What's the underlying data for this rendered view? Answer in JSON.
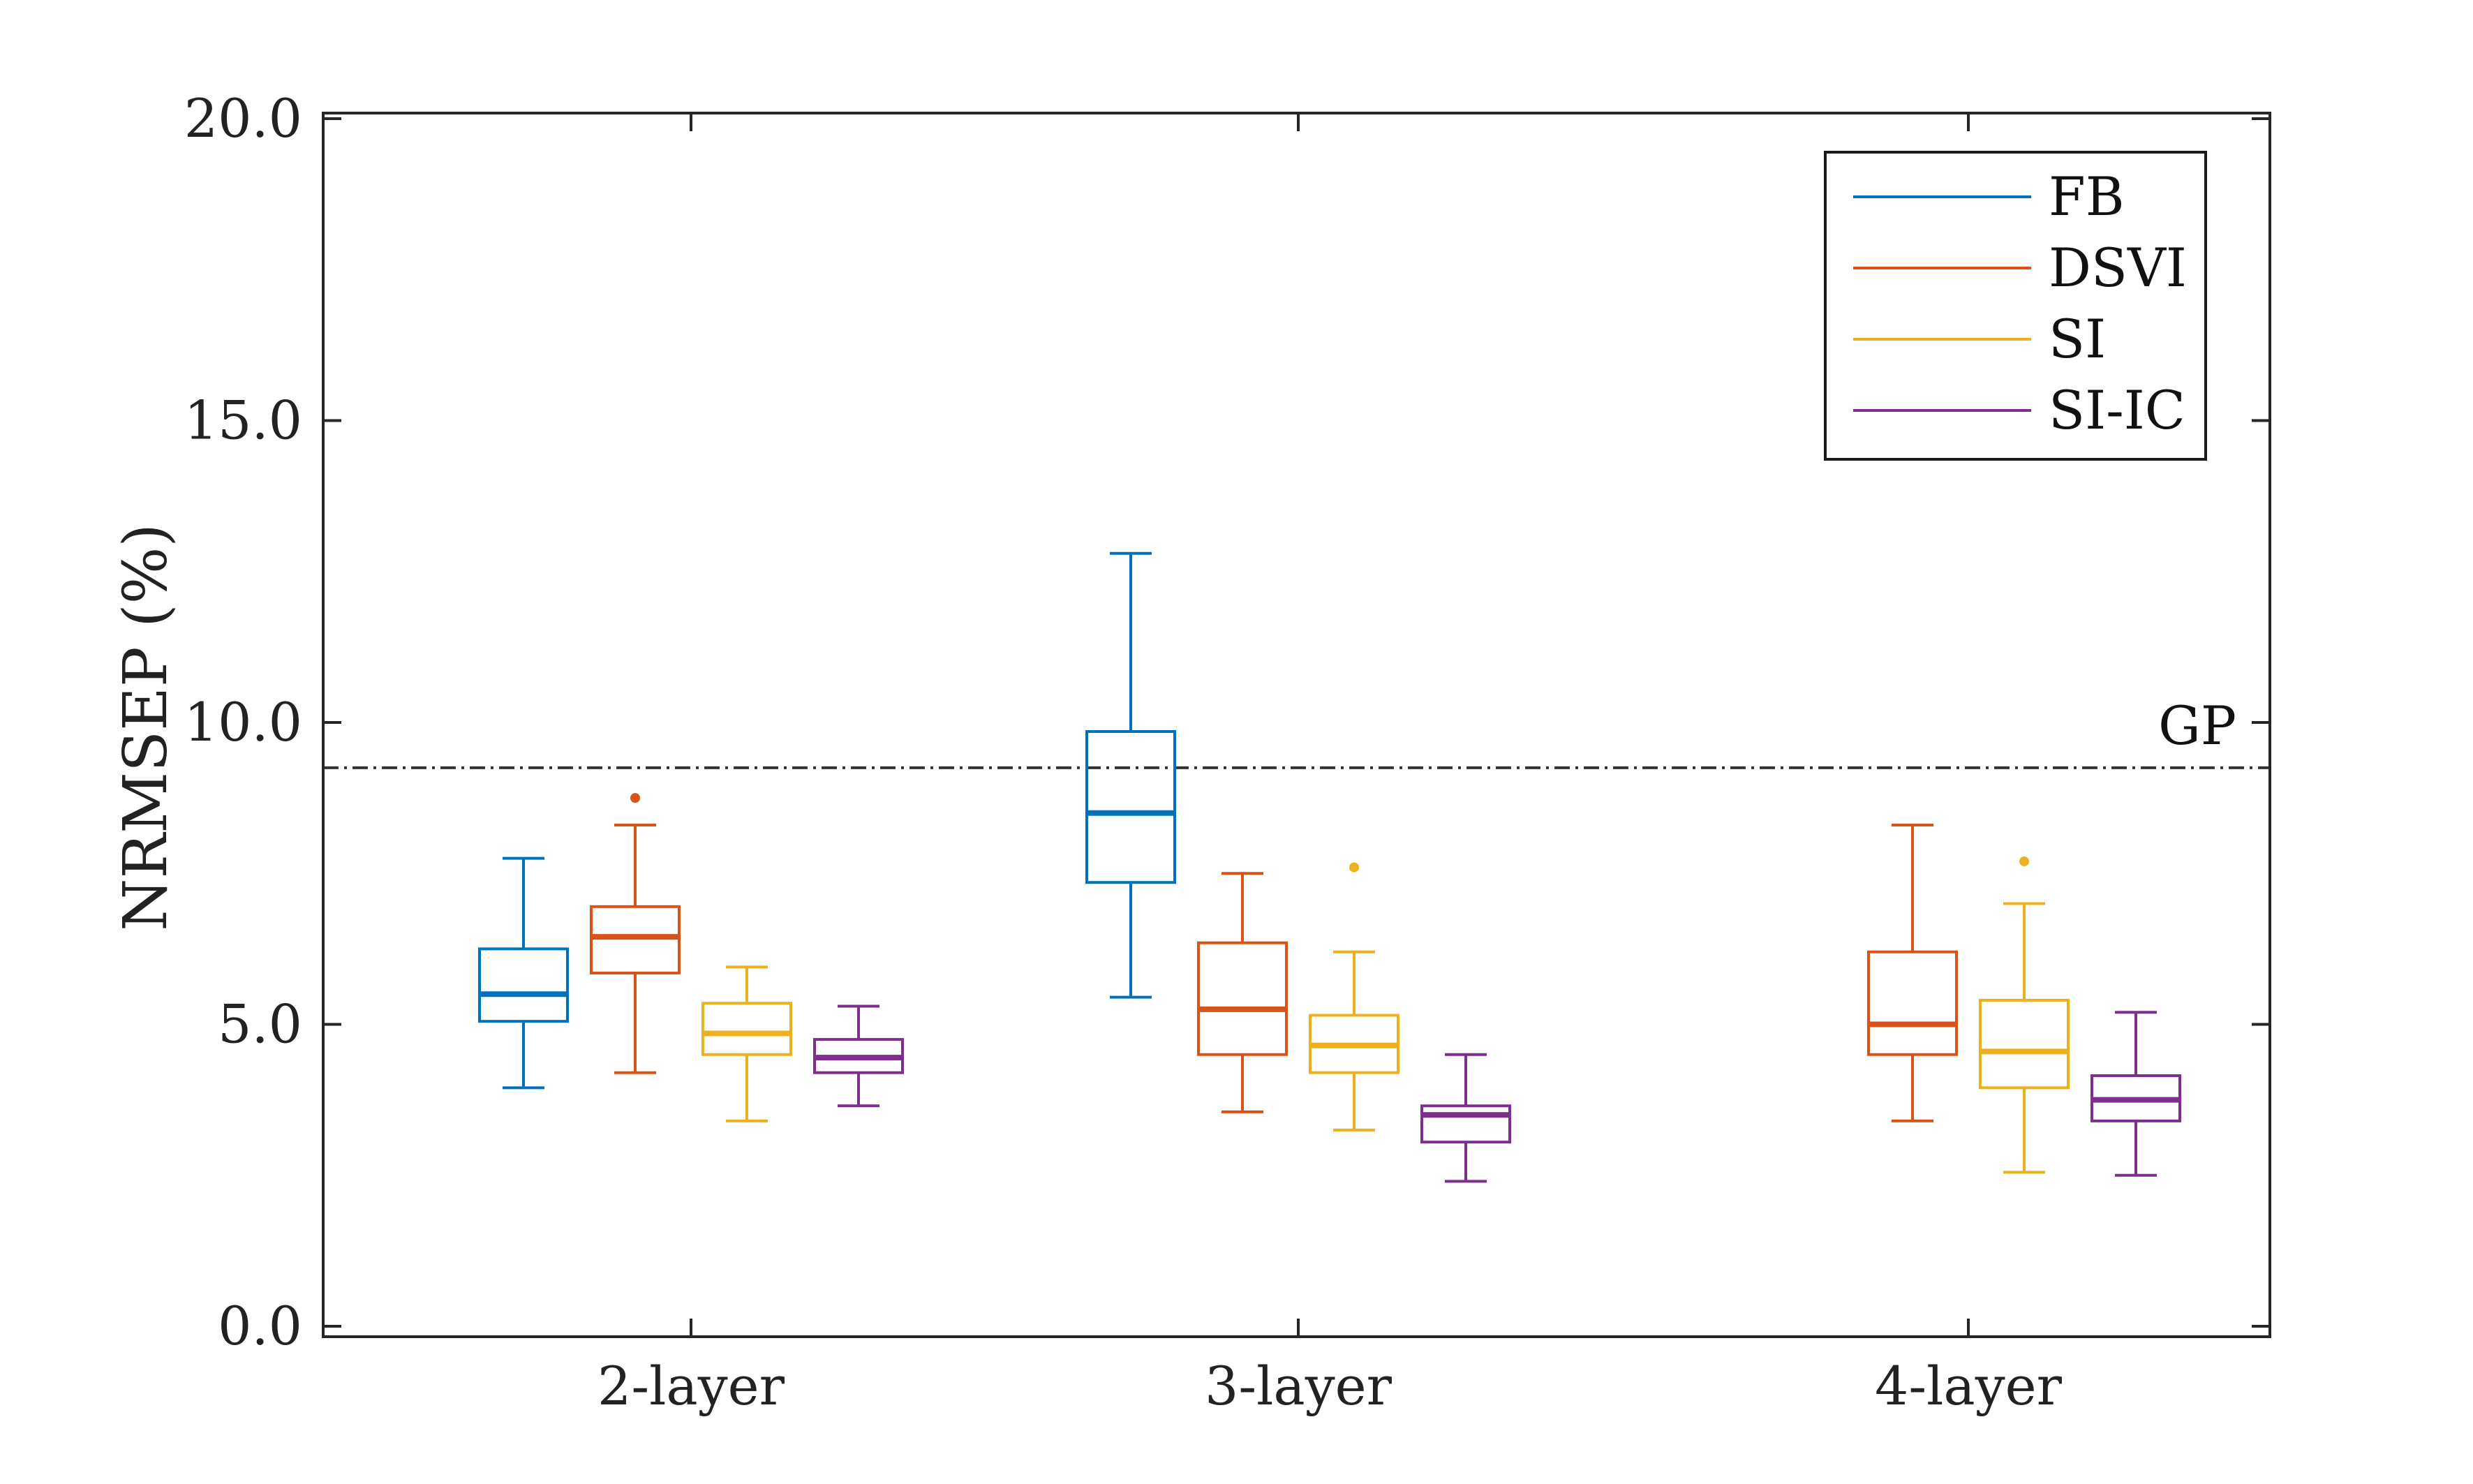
{
  "chart_data": {
    "type": "box",
    "title": "",
    "xlabel": "",
    "ylabel": "NRMSEP (%)",
    "ylim": [
      0,
      20
    ],
    "yticks": [
      "0.0",
      "5.0",
      "10.0",
      "15.0",
      "20.0"
    ],
    "ytick_values": [
      0,
      5,
      10,
      15,
      20
    ],
    "categories": [
      "2-layer",
      "3-layer",
      "4-layer"
    ],
    "legend_position": "top-right",
    "reference_line": {
      "label": "GP",
      "value": 9.25,
      "style": "dash-dot",
      "color": "#333333"
    },
    "series": [
      {
        "name": "FB",
        "color": "#0072BD",
        "boxes": [
          {
            "category": "2-layer",
            "whisker_low": 3.95,
            "q1": 5.05,
            "median": 5.5,
            "q3": 6.25,
            "whisker_high": 7.75,
            "outliers": []
          },
          {
            "category": "3-layer",
            "whisker_low": 5.45,
            "q1": 7.35,
            "median": 8.5,
            "q3": 9.85,
            "whisker_high": 12.8,
            "outliers": []
          },
          null
        ]
      },
      {
        "name": "DSVI",
        "color": "#D95319",
        "boxes": [
          {
            "category": "2-layer",
            "whisker_low": 4.2,
            "q1": 5.85,
            "median": 6.45,
            "q3": 6.95,
            "whisker_high": 8.3,
            "outliers": [
              8.75
            ]
          },
          {
            "category": "3-layer",
            "whisker_low": 3.55,
            "q1": 4.5,
            "median": 5.25,
            "q3": 6.35,
            "whisker_high": 7.5,
            "outliers": []
          },
          {
            "category": "4-layer",
            "whisker_low": 3.4,
            "q1": 4.5,
            "median": 5.0,
            "q3": 6.2,
            "whisker_high": 8.3,
            "outliers": []
          }
        ]
      },
      {
        "name": "SI",
        "color": "#EDB120",
        "boxes": [
          {
            "category": "2-layer",
            "whisker_low": 3.4,
            "q1": 4.5,
            "median": 4.85,
            "q3": 5.35,
            "whisker_high": 5.95,
            "outliers": []
          },
          {
            "category": "3-layer",
            "whisker_low": 3.25,
            "q1": 4.2,
            "median": 4.65,
            "q3": 5.15,
            "whisker_high": 6.2,
            "outliers": [
              7.6
            ]
          },
          {
            "category": "4-layer",
            "whisker_low": 2.55,
            "q1": 3.95,
            "median": 4.55,
            "q3": 5.4,
            "whisker_high": 7.0,
            "outliers": [
              7.7
            ]
          }
        ]
      },
      {
        "name": "SI-IC",
        "color": "#7E2F8E",
        "boxes": [
          {
            "category": "2-layer",
            "whisker_low": 3.65,
            "q1": 4.2,
            "median": 4.45,
            "q3": 4.75,
            "whisker_high": 5.3,
            "outliers": []
          },
          {
            "category": "3-layer",
            "whisker_low": 2.4,
            "q1": 3.05,
            "median": 3.5,
            "q3": 3.65,
            "whisker_high": 4.5,
            "outliers": []
          },
          {
            "category": "4-layer",
            "whisker_low": 2.5,
            "q1": 3.4,
            "median": 3.75,
            "q3": 4.15,
            "whisker_high": 5.2,
            "outliers": []
          }
        ]
      }
    ]
  }
}
